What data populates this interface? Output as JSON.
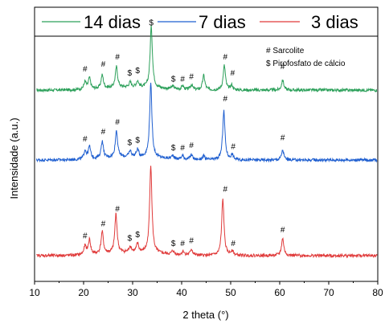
{
  "chart_data": {
    "type": "line",
    "xlabel": "2 theta (°)",
    "ylabel": "Intensidade (a.u.)",
    "xlim": [
      10,
      80
    ],
    "xticks": [
      10,
      20,
      30,
      40,
      50,
      60,
      70,
      80
    ],
    "legend_position": "top",
    "series": [
      {
        "name": "14 dias",
        "color": "#2ca05a",
        "baseline": 0.78,
        "peaks": [
          [
            20.3,
            0.03
          ],
          [
            21.2,
            0.045
          ],
          [
            23.8,
            0.055
          ],
          [
            26.7,
            0.085
          ],
          [
            29.5,
            0.02
          ],
          [
            31.0,
            0.025
          ],
          [
            33.8,
            0.25
          ],
          [
            38.2,
            0.012
          ],
          [
            40.2,
            0.015
          ],
          [
            42.0,
            0.02
          ],
          [
            44.5,
            0.06
          ],
          [
            48.7,
            0.1
          ],
          [
            50.2,
            0.02
          ],
          [
            60.6,
            0.04
          ]
        ]
      },
      {
        "name": "7 dias",
        "color": "#1f5fd0",
        "baseline": 0.495,
        "peaks": [
          [
            20.3,
            0.035
          ],
          [
            21.2,
            0.05
          ],
          [
            23.8,
            0.07
          ],
          [
            26.7,
            0.11
          ],
          [
            29.5,
            0.025
          ],
          [
            31.0,
            0.03
          ],
          [
            33.7,
            0.3
          ],
          [
            38.2,
            0.015
          ],
          [
            40.2,
            0.015
          ],
          [
            42.0,
            0.02
          ],
          [
            44.5,
            0.015
          ],
          [
            48.6,
            0.2
          ],
          [
            50.3,
            0.02
          ],
          [
            60.6,
            0.04
          ]
        ]
      },
      {
        "name": "3 dias",
        "color": "#e03a3a",
        "baseline": 0.105,
        "peaks": [
          [
            20.3,
            0.035
          ],
          [
            21.2,
            0.06
          ],
          [
            23.8,
            0.09
          ],
          [
            26.6,
            0.16
          ],
          [
            29.5,
            0.025
          ],
          [
            31.0,
            0.035
          ],
          [
            33.7,
            0.36
          ],
          [
            38.2,
            0.015
          ],
          [
            40.3,
            0.015
          ],
          [
            42.0,
            0.025
          ],
          [
            48.4,
            0.23
          ],
          [
            50.3,
            0.02
          ],
          [
            60.6,
            0.07
          ]
        ]
      }
    ],
    "annotations": {
      "legend": [
        {
          "symbol": "#",
          "label": "Sarcolite"
        },
        {
          "symbol": "$",
          "label": "Pirofosfato de cálcio"
        }
      ],
      "peak_marks": [
        {
          "x": 20.3,
          "y": 0.855,
          "symbol": "#"
        },
        {
          "x": 24.0,
          "y": 0.875,
          "symbol": "#"
        },
        {
          "x": 26.9,
          "y": 0.905,
          "symbol": "#"
        },
        {
          "x": 29.4,
          "y": 0.84,
          "symbol": "$"
        },
        {
          "x": 31.0,
          "y": 0.85,
          "symbol": "$"
        },
        {
          "x": 33.8,
          "y": 1.045,
          "symbol": "$"
        },
        {
          "x": 38.3,
          "y": 0.815,
          "symbol": "$"
        },
        {
          "x": 40.2,
          "y": 0.815,
          "symbol": "#"
        },
        {
          "x": 42.0,
          "y": 0.825,
          "symbol": "#"
        },
        {
          "x": 48.9,
          "y": 0.905,
          "symbol": "#"
        },
        {
          "x": 50.4,
          "y": 0.84,
          "symbol": "#"
        },
        {
          "x": 60.6,
          "y": 0.865,
          "symbol": "#"
        },
        {
          "x": 20.3,
          "y": 0.57,
          "symbol": "#"
        },
        {
          "x": 24.0,
          "y": 0.6,
          "symbol": "#"
        },
        {
          "x": 26.9,
          "y": 0.64,
          "symbol": "#"
        },
        {
          "x": 29.4,
          "y": 0.555,
          "symbol": "$"
        },
        {
          "x": 31.0,
          "y": 0.565,
          "symbol": "$"
        },
        {
          "x": 38.3,
          "y": 0.535,
          "symbol": "$"
        },
        {
          "x": 40.2,
          "y": 0.535,
          "symbol": "#"
        },
        {
          "x": 42.0,
          "y": 0.545,
          "symbol": "#"
        },
        {
          "x": 48.9,
          "y": 0.735,
          "symbol": "#"
        },
        {
          "x": 50.5,
          "y": 0.54,
          "symbol": "#"
        },
        {
          "x": 60.6,
          "y": 0.575,
          "symbol": "#"
        },
        {
          "x": 20.3,
          "y": 0.175,
          "symbol": "#"
        },
        {
          "x": 24.0,
          "y": 0.225,
          "symbol": "#"
        },
        {
          "x": 26.9,
          "y": 0.285,
          "symbol": "#"
        },
        {
          "x": 29.4,
          "y": 0.165,
          "symbol": "$"
        },
        {
          "x": 31.0,
          "y": 0.18,
          "symbol": "$"
        },
        {
          "x": 38.3,
          "y": 0.145,
          "symbol": "$"
        },
        {
          "x": 40.2,
          "y": 0.145,
          "symbol": "#"
        },
        {
          "x": 42.0,
          "y": 0.155,
          "symbol": "#"
        },
        {
          "x": 48.9,
          "y": 0.365,
          "symbol": "#"
        },
        {
          "x": 50.5,
          "y": 0.145,
          "symbol": "#"
        },
        {
          "x": 60.6,
          "y": 0.2,
          "symbol": "#"
        }
      ]
    }
  }
}
